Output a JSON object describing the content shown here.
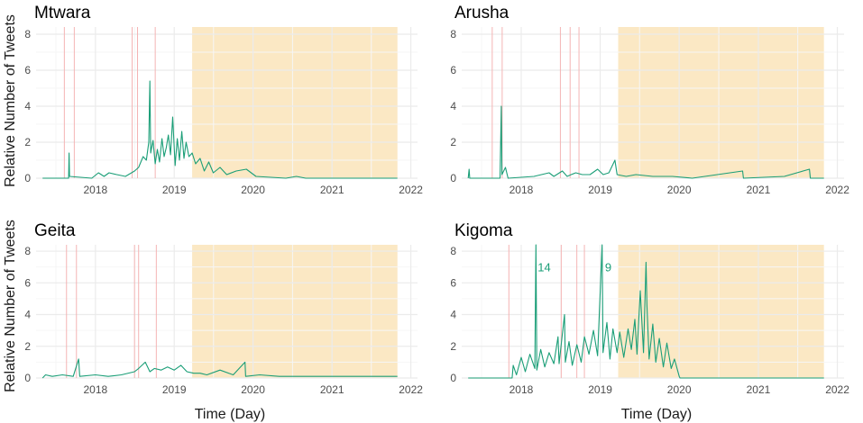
{
  "colors": {
    "line": "#1a9e77",
    "shade": "#fbe8c4",
    "event_line": "#f4b4b4",
    "grid_major": "#ebebeb",
    "grid_minor": "#f6f6f6"
  },
  "xlabel": "Time (Day)",
  "ylabel": "Relative Number of Tweets",
  "chart_data": [
    {
      "type": "line",
      "title": "Mtwara",
      "xlabel": "",
      "ylabel": "Relative Number of Tweets",
      "xlim": [
        "2017-04-01",
        "2022-02-01"
      ],
      "ylim": [
        0,
        8.4
      ],
      "x_ticks": [
        "2018",
        "2019",
        "2020",
        "2021",
        "2022"
      ],
      "y_ticks": [
        "0",
        "2",
        "4",
        "6",
        "8"
      ],
      "shaded_period": [
        "2019-03-25",
        "2021-10-31"
      ],
      "event_lines": [
        "2017-08-10",
        "2017-09-25",
        "2018-06-20",
        "2018-07-15",
        "2018-10-05"
      ],
      "series": [
        {
          "values": [
            [
              "2017-05-01",
              0
            ],
            [
              "2017-08-30",
              0
            ],
            [
              "2017-09-01",
              1.4
            ],
            [
              "2017-09-03",
              0.1
            ],
            [
              "2017-12-15",
              0
            ],
            [
              "2018-01-15",
              0.3
            ],
            [
              "2018-02-10",
              0.1
            ],
            [
              "2018-03-05",
              0.3
            ],
            [
              "2018-04-10",
              0.2
            ],
            [
              "2018-05-20",
              0.1
            ],
            [
              "2018-07-01",
              0.4
            ],
            [
              "2018-07-20",
              0.6
            ],
            [
              "2018-08-10",
              1.2
            ],
            [
              "2018-08-25",
              1.0
            ],
            [
              "2018-09-05",
              2.0
            ],
            [
              "2018-09-10",
              5.4
            ],
            [
              "2018-09-14",
              1.4
            ],
            [
              "2018-09-25",
              2.1
            ],
            [
              "2018-10-05",
              0.8
            ],
            [
              "2018-10-15",
              1.6
            ],
            [
              "2018-10-25",
              0.9
            ],
            [
              "2018-11-05",
              2.2
            ],
            [
              "2018-11-15",
              1.2
            ],
            [
              "2018-11-25",
              1.7
            ],
            [
              "2018-12-05",
              2.4
            ],
            [
              "2018-12-15",
              1.3
            ],
            [
              "2018-12-25",
              3.4
            ],
            [
              "2019-01-05",
              0.7
            ],
            [
              "2019-01-15",
              2.2
            ],
            [
              "2019-01-25",
              1.0
            ],
            [
              "2019-02-05",
              2.6
            ],
            [
              "2019-02-15",
              1.1
            ],
            [
              "2019-02-25",
              2.0
            ],
            [
              "2019-03-10",
              1.2
            ],
            [
              "2019-03-25",
              1.4
            ],
            [
              "2019-04-10",
              0.8
            ],
            [
              "2019-05-01",
              1.1
            ],
            [
              "2019-05-20",
              0.4
            ],
            [
              "2019-06-10",
              0.9
            ],
            [
              "2019-07-01",
              0.3
            ],
            [
              "2019-08-01",
              0.6
            ],
            [
              "2019-09-01",
              0.2
            ],
            [
              "2019-10-15",
              0.4
            ],
            [
              "2019-12-01",
              0.5
            ],
            [
              "2020-01-15",
              0.1
            ],
            [
              "2020-06-01",
              0
            ],
            [
              "2020-07-20",
              0.1
            ],
            [
              "2020-09-01",
              0
            ],
            [
              "2021-10-31",
              0
            ]
          ]
        }
      ]
    },
    {
      "type": "line",
      "title": "Arusha",
      "xlabel": "",
      "ylabel": "",
      "xlim": [
        "2017-04-01",
        "2022-02-01"
      ],
      "ylim": [
        0,
        8.4
      ],
      "x_ticks": [
        "2018",
        "2019",
        "2020",
        "2021",
        "2022"
      ],
      "y_ticks": [
        "0",
        "2",
        "4",
        "6",
        "8"
      ],
      "shaded_period": [
        "2019-03-25",
        "2021-10-31"
      ],
      "event_lines": [
        "2017-08-20",
        "2017-10-05",
        "2018-07-01",
        "2018-08-15",
        "2018-09-25"
      ],
      "series": [
        {
          "values": [
            [
              "2017-05-01",
              0
            ],
            [
              "2017-05-05",
              0.5
            ],
            [
              "2017-05-08",
              0
            ],
            [
              "2017-09-25",
              0
            ],
            [
              "2017-10-01",
              4.0
            ],
            [
              "2017-10-04",
              0.2
            ],
            [
              "2017-10-20",
              0.6
            ],
            [
              "2017-11-01",
              0
            ],
            [
              "2018-03-01",
              0.1
            ],
            [
              "2018-05-10",
              0.3
            ],
            [
              "2018-06-01",
              0.1
            ],
            [
              "2018-07-10",
              0.4
            ],
            [
              "2018-08-01",
              0.1
            ],
            [
              "2018-08-20",
              0.2
            ],
            [
              "2018-09-10",
              0.3
            ],
            [
              "2018-10-10",
              0.2
            ],
            [
              "2018-11-15",
              0.2
            ],
            [
              "2018-12-20",
              0.5
            ],
            [
              "2019-01-15",
              0.2
            ],
            [
              "2019-02-10",
              0.3
            ],
            [
              "2019-03-10",
              1.0
            ],
            [
              "2019-03-20",
              0.2
            ],
            [
              "2019-05-01",
              0.1
            ],
            [
              "2019-06-15",
              0.2
            ],
            [
              "2019-09-01",
              0.1
            ],
            [
              "2019-12-01",
              0.1
            ],
            [
              "2020-03-01",
              0
            ],
            [
              "2020-10-20",
              0.4
            ],
            [
              "2020-10-24",
              0
            ],
            [
              "2021-05-01",
              0.1
            ],
            [
              "2021-08-25",
              0.5
            ],
            [
              "2021-08-29",
              0
            ],
            [
              "2021-10-31",
              0
            ]
          ]
        }
      ]
    },
    {
      "type": "line",
      "title": "Geita",
      "xlabel": "Time (Day)",
      "ylabel": "Relative Number of Tweets",
      "xlim": [
        "2017-04-01",
        "2022-02-01"
      ],
      "ylim": [
        0,
        8.4
      ],
      "x_ticks": [
        "2018",
        "2019",
        "2020",
        "2021",
        "2022"
      ],
      "y_ticks": [
        "0",
        "2",
        "4",
        "6",
        "8"
      ],
      "shaded_period": [
        "2019-03-25",
        "2021-10-31"
      ],
      "event_lines": [
        "2017-08-20",
        "2017-10-05",
        "2018-07-01",
        "2018-07-20",
        "2018-10-10"
      ],
      "series": [
        {
          "values": [
            [
              "2017-05-01",
              0
            ],
            [
              "2017-05-15",
              0.2
            ],
            [
              "2017-06-15",
              0.1
            ],
            [
              "2017-08-01",
              0.2
            ],
            [
              "2017-09-20",
              0.1
            ],
            [
              "2017-10-15",
              1.2
            ],
            [
              "2017-10-20",
              0.1
            ],
            [
              "2018-01-01",
              0.2
            ],
            [
              "2018-03-01",
              0.1
            ],
            [
              "2018-05-01",
              0.2
            ],
            [
              "2018-07-01",
              0.4
            ],
            [
              "2018-07-20",
              0.6
            ],
            [
              "2018-08-20",
              1.0
            ],
            [
              "2018-09-10",
              0.4
            ],
            [
              "2018-10-01",
              0.6
            ],
            [
              "2018-11-01",
              0.5
            ],
            [
              "2018-12-01",
              0.7
            ],
            [
              "2019-01-01",
              0.5
            ],
            [
              "2019-02-01",
              0.8
            ],
            [
              "2019-03-01",
              0.4
            ],
            [
              "2019-04-01",
              0.3
            ],
            [
              "2019-05-01",
              0.3
            ],
            [
              "2019-06-01",
              0.2
            ],
            [
              "2019-08-01",
              0.5
            ],
            [
              "2019-10-01",
              0.2
            ],
            [
              "2019-11-25",
              1.0
            ],
            [
              "2019-11-28",
              0.1
            ],
            [
              "2020-02-01",
              0.2
            ],
            [
              "2020-05-01",
              0.1
            ],
            [
              "2020-10-01",
              0.1
            ],
            [
              "2021-06-01",
              0.1
            ],
            [
              "2021-10-31",
              0.1
            ]
          ]
        }
      ]
    },
    {
      "type": "line",
      "title": "Kigoma",
      "xlabel": "Time (Day)",
      "ylabel": "",
      "xlim": [
        "2017-04-01",
        "2022-02-01"
      ],
      "ylim": [
        0,
        8.4
      ],
      "x_ticks": [
        "2018",
        "2019",
        "2020",
        "2021",
        "2022"
      ],
      "y_ticks": [
        "0",
        "2",
        "4",
        "6",
        "8"
      ],
      "shaded_period": [
        "2019-03-25",
        "2021-10-31"
      ],
      "event_lines": [
        "2017-11-05",
        "2018-07-05",
        "2018-09-15",
        "2018-10-20"
      ],
      "annotations": [
        {
          "text": "14",
          "x": "2018-03-10",
          "y": 7.0
        },
        {
          "text": "9",
          "x": "2019-01-15",
          "y": 7.0
        }
      ],
      "series": [
        {
          "values": [
            [
              "2017-05-01",
              0
            ],
            [
              "2017-11-20",
              0
            ],
            [
              "2017-11-25",
              0.8
            ],
            [
              "2017-12-10",
              0.2
            ],
            [
              "2018-01-01",
              1.3
            ],
            [
              "2018-01-20",
              0.4
            ],
            [
              "2018-02-10",
              1.5
            ],
            [
              "2018-03-05",
              0.6
            ],
            [
              "2018-03-10",
              8.4
            ],
            [
              "2018-03-14",
              0.5
            ],
            [
              "2018-04-01",
              1.8
            ],
            [
              "2018-04-20",
              0.7
            ],
            [
              "2018-05-10",
              1.6
            ],
            [
              "2018-06-01",
              0.9
            ],
            [
              "2018-06-20",
              2.6
            ],
            [
              "2018-06-25",
              0.9
            ],
            [
              "2018-07-20",
              4.0
            ],
            [
              "2018-07-24",
              1.0
            ],
            [
              "2018-08-10",
              2.3
            ],
            [
              "2018-08-25",
              0.8
            ],
            [
              "2018-09-15",
              2.1
            ],
            [
              "2018-10-05",
              1.0
            ],
            [
              "2018-10-20",
              2.6
            ],
            [
              "2018-11-10",
              1.5
            ],
            [
              "2018-12-01",
              3.0
            ],
            [
              "2018-12-20",
              1.4
            ],
            [
              "2019-01-10",
              8.4
            ],
            [
              "2019-01-14",
              1.6
            ],
            [
              "2019-02-01",
              3.5
            ],
            [
              "2019-02-15",
              1.2
            ],
            [
              "2019-03-01",
              3.1
            ],
            [
              "2019-03-20",
              1.6
            ],
            [
              "2019-04-01",
              2.9
            ],
            [
              "2019-04-20",
              1.3
            ],
            [
              "2019-05-10",
              3.1
            ],
            [
              "2019-05-25",
              1.8
            ],
            [
              "2019-06-10",
              3.7
            ],
            [
              "2019-06-20",
              1.5
            ],
            [
              "2019-07-05",
              5.5
            ],
            [
              "2019-07-20",
              1.6
            ],
            [
              "2019-08-01",
              7.3
            ],
            [
              "2019-08-05",
              4.6
            ],
            [
              "2019-08-15",
              1.2
            ],
            [
              "2019-09-01",
              3.4
            ],
            [
              "2019-09-15",
              1.0
            ],
            [
              "2019-10-01",
              2.5
            ],
            [
              "2019-10-20",
              0.7
            ],
            [
              "2019-11-05",
              2.2
            ],
            [
              "2019-11-25",
              0.6
            ],
            [
              "2019-12-10",
              1.2
            ],
            [
              "2020-01-01",
              0.1
            ],
            [
              "2020-01-05",
              0
            ],
            [
              "2021-10-31",
              0
            ]
          ]
        }
      ]
    }
  ]
}
